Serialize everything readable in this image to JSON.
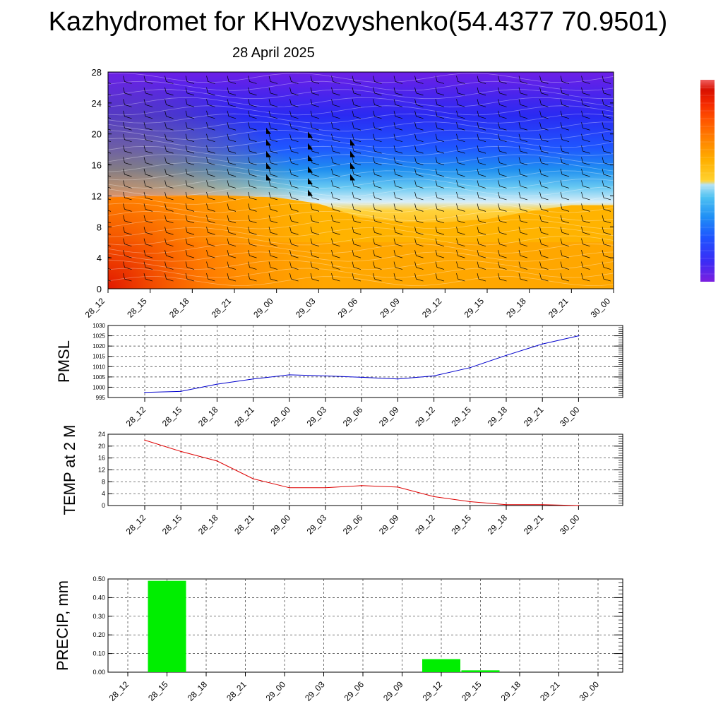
{
  "title": "Kazhydromet for KHVozvyshenko(54.4377 70.9501)",
  "subtitle": "28 April 2025",
  "chart_data": [
    {
      "type": "heatmap",
      "name": "height-time cross-section",
      "ylim": [
        0,
        28
      ],
      "y_ticks": [
        "0",
        "4",
        "8",
        "12",
        "16",
        "20",
        "24",
        "28"
      ],
      "x_ticks": [
        "28_12",
        "28_15",
        "28_18",
        "28_21",
        "29_00",
        "29_03",
        "29_06",
        "29_09",
        "29_12",
        "29_15",
        "29_18",
        "29_21",
        "30_00"
      ],
      "warm_layer_top": [
        11.8,
        12.0,
        12.1,
        12.0,
        11.8,
        11.0,
        9.2,
        8.6,
        8.6,
        9.0,
        10.0,
        10.8,
        10.8
      ],
      "colorbar_colors": [
        "#7b1fe0",
        "#3b2cf5",
        "#1e54ff",
        "#1f8ff5",
        "#4fc2f2",
        "#b7e3f5",
        "#ffd230",
        "#ffb000",
        "#ff8400",
        "#ff5500",
        "#f52a00",
        "#d81000",
        "#f06060"
      ]
    },
    {
      "type": "line",
      "name": "PMSL",
      "ylabel": "PMSL",
      "categories": [
        "28_12",
        "28_15",
        "28_18",
        "28_21",
        "29_00",
        "29_03",
        "29_06",
        "29_09",
        "29_12",
        "29_15",
        "29_18",
        "29_21",
        "30_00"
      ],
      "values": [
        997.5,
        998.0,
        1001.5,
        1004.0,
        1006.0,
        1005.5,
        1004.8,
        1004.0,
        1005.5,
        1009.5,
        1015.5,
        1021.0,
        1025.0
      ],
      "ylim": [
        995,
        1030
      ],
      "y_ticks": [
        "995",
        "1000",
        "1005",
        "1010",
        "1015",
        "1020",
        "1025",
        "1030"
      ],
      "color": "#0000cc"
    },
    {
      "type": "line",
      "name": "TEMP at 2 M",
      "ylabel": "TEMP at 2 M",
      "categories": [
        "28_12",
        "28_15",
        "28_18",
        "28_21",
        "29_00",
        "29_03",
        "29_06",
        "29_09",
        "29_12",
        "29_15",
        "29_18",
        "29_21",
        "30_00"
      ],
      "values": [
        22.0,
        18.2,
        15.0,
        9.0,
        6.0,
        6.0,
        6.7,
        6.2,
        3.0,
        1.3,
        0.3,
        0.3,
        0.0
      ],
      "ylim": [
        0,
        24
      ],
      "y_ticks": [
        "0",
        "4",
        "8",
        "12",
        "16",
        "20",
        "24"
      ],
      "color": "#dd0000"
    },
    {
      "type": "bar",
      "name": "PRECIP, mm",
      "ylabel": "PRECIP, mm",
      "categories": [
        "28_12",
        "28_15",
        "28_18",
        "28_21",
        "29_00",
        "29_03",
        "29_06",
        "29_09",
        "29_12",
        "29_15",
        "29_18",
        "29_21",
        "30_00"
      ],
      "values": [
        0,
        0.49,
        0,
        0,
        0,
        0,
        0,
        0,
        0.07,
        0.01,
        0,
        0,
        0
      ],
      "ylim": [
        0,
        0.5
      ],
      "y_ticks": [
        "0.00",
        "0.10",
        "0.20",
        "0.30",
        "0.40",
        "0.50"
      ],
      "color": "#00ee00"
    }
  ]
}
